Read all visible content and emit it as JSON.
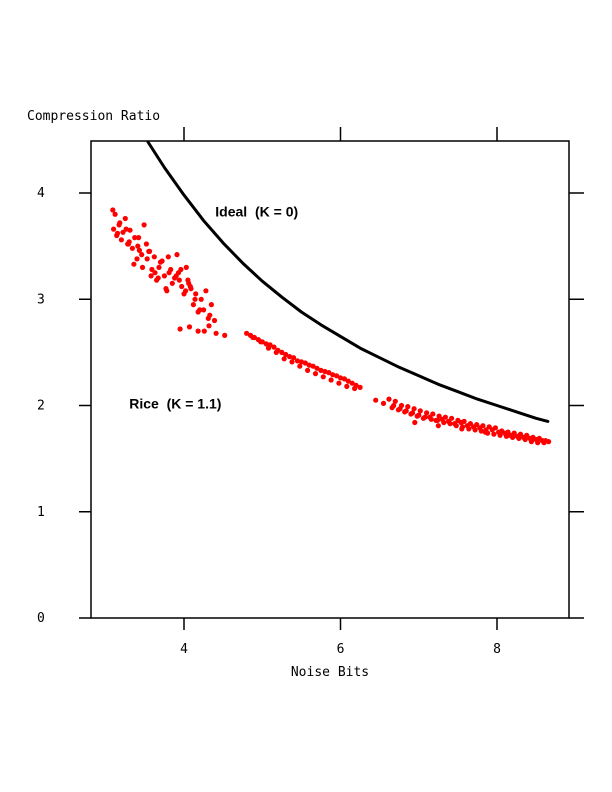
{
  "chart_data": {
    "type": "scatter",
    "title": "",
    "xlabel": "Noise Bits",
    "ylabel": "Compression Ratio",
    "xlim": [
      2.85,
      8.9
    ],
    "ylim": [
      0,
      4.5
    ],
    "x_ticks": [
      4,
      6,
      8
    ],
    "x_tick_labels": [
      "4",
      "6",
      "8"
    ],
    "y_ticks": [
      0,
      1,
      2,
      3,
      4
    ],
    "y_tick_labels": [
      "0",
      "1",
      "2",
      "3",
      "4"
    ],
    "grid": false,
    "legend": "none",
    "series": [
      {
        "name": "Ideal (K = 0)",
        "kind": "line",
        "color": "#000000",
        "x": [
          3.54,
          3.75,
          4.0,
          4.25,
          4.5,
          4.75,
          5.0,
          5.25,
          5.5,
          5.75,
          6.0,
          6.25,
          6.5,
          6.75,
          7.0,
          7.25,
          7.5,
          7.75,
          8.0,
          8.25,
          8.5,
          8.65
        ],
        "values": [
          4.48,
          4.24,
          3.98,
          3.74,
          3.53,
          3.34,
          3.17,
          3.02,
          2.88,
          2.76,
          2.65,
          2.54,
          2.45,
          2.36,
          2.28,
          2.2,
          2.13,
          2.06,
          2.0,
          1.94,
          1.88,
          1.85
        ]
      },
      {
        "name": "Rice (K = 1.1)",
        "kind": "points",
        "color": "#ff0000",
        "x": [
          3.09,
          3.12,
          3.15,
          3.18,
          3.22,
          3.25,
          3.28,
          3.31,
          3.34,
          3.37,
          3.4,
          3.43,
          3.46,
          3.49,
          3.52,
          3.56,
          3.59,
          3.62,
          3.65,
          3.68,
          3.72,
          3.75,
          3.78,
          3.81,
          3.85,
          3.88,
          3.91,
          3.94,
          3.97,
          4.0,
          4.03,
          4.06,
          4.09,
          4.12,
          4.15,
          4.18,
          4.22,
          4.25,
          4.28,
          4.31,
          4.35,
          4.39,
          3.1,
          3.14,
          3.2,
          3.26,
          3.3,
          3.36,
          3.42,
          3.47,
          3.53,
          3.58,
          3.63,
          3.7,
          3.77,
          3.83,
          3.9,
          3.96,
          4.02,
          4.08,
          4.14,
          4.2,
          4.26,
          4.33,
          3.17,
          3.29,
          3.41,
          3.55,
          3.67,
          3.8,
          3.93,
          4.05,
          3.95,
          4.07,
          4.18,
          4.32,
          4.41,
          4.52,
          4.8,
          4.85,
          4.9,
          4.95,
          5.0,
          5.05,
          5.1,
          5.15,
          5.2,
          5.25,
          5.3,
          5.35,
          5.4,
          5.45,
          5.5,
          5.55,
          5.6,
          5.65,
          5.7,
          5.75,
          5.8,
          5.85,
          5.9,
          5.95,
          6.0,
          6.05,
          6.1,
          6.15,
          6.2,
          6.25,
          4.88,
          4.98,
          5.08,
          5.18,
          5.28,
          5.38,
          5.48,
          5.58,
          5.68,
          5.78,
          5.88,
          5.98,
          6.08,
          6.18,
          6.45,
          6.55,
          6.62,
          6.66,
          6.7,
          6.74,
          6.78,
          6.82,
          6.86,
          6.9,
          6.94,
          6.98,
          7.02,
          7.06,
          7.1,
          7.14,
          7.18,
          7.22,
          7.26,
          7.3,
          7.34,
          7.38,
          7.42,
          7.46,
          7.5,
          7.54,
          7.58,
          7.62,
          7.66,
          7.7,
          7.74,
          7.78,
          7.82,
          7.86,
          7.9,
          7.94,
          7.98,
          8.02,
          8.06,
          8.1,
          8.14,
          8.18,
          8.22,
          8.26,
          8.3,
          8.34,
          8.38,
          8.42,
          8.46,
          8.5,
          8.54,
          8.58,
          8.62,
          8.66,
          6.68,
          6.76,
          6.84,
          6.92,
          7.0,
          7.08,
          7.16,
          7.24,
          7.32,
          7.4,
          7.48,
          7.56,
          7.64,
          7.72,
          7.8,
          7.88,
          7.96,
          8.04,
          8.12,
          8.2,
          8.28,
          8.36,
          8.44,
          8.52,
          8.6,
          6.95,
          7.25,
          7.55,
          7.85,
          8.15,
          8.45
        ],
        "values": [
          3.84,
          3.8,
          3.62,
          3.72,
          3.63,
          3.76,
          3.52,
          3.65,
          3.48,
          3.58,
          3.38,
          3.46,
          3.42,
          3.7,
          3.52,
          3.45,
          3.28,
          3.4,
          3.18,
          3.3,
          3.36,
          3.22,
          3.08,
          3.25,
          3.15,
          3.2,
          3.42,
          3.18,
          3.12,
          3.05,
          3.3,
          3.15,
          3.1,
          2.95,
          3.05,
          2.88,
          3.0,
          2.9,
          3.08,
          2.82,
          2.95,
          2.8,
          3.66,
          3.6,
          3.56,
          3.66,
          3.54,
          3.33,
          3.58,
          3.3,
          3.38,
          3.22,
          3.25,
          3.35,
          3.1,
          3.28,
          3.22,
          3.28,
          3.08,
          3.12,
          3.0,
          2.9,
          2.7,
          2.85,
          3.7,
          3.52,
          3.5,
          3.45,
          3.2,
          3.4,
          3.25,
          3.18,
          2.72,
          2.74,
          2.7,
          2.75,
          2.68,
          2.66,
          2.68,
          2.66,
          2.64,
          2.62,
          2.6,
          2.58,
          2.57,
          2.55,
          2.52,
          2.5,
          2.48,
          2.46,
          2.45,
          2.42,
          2.41,
          2.4,
          2.38,
          2.37,
          2.35,
          2.33,
          2.32,
          2.31,
          2.29,
          2.28,
          2.26,
          2.25,
          2.23,
          2.21,
          2.19,
          2.17,
          2.64,
          2.6,
          2.54,
          2.5,
          2.44,
          2.41,
          2.37,
          2.33,
          2.3,
          2.27,
          2.24,
          2.21,
          2.18,
          2.16,
          2.05,
          2.02,
          2.06,
          1.98,
          2.04,
          1.96,
          2.0,
          1.94,
          1.99,
          1.92,
          1.97,
          1.9,
          1.95,
          1.88,
          1.93,
          1.89,
          1.92,
          1.86,
          1.9,
          1.87,
          1.89,
          1.85,
          1.88,
          1.83,
          1.86,
          1.84,
          1.85,
          1.81,
          1.83,
          1.8,
          1.82,
          1.79,
          1.81,
          1.77,
          1.8,
          1.77,
          1.79,
          1.75,
          1.76,
          1.74,
          1.75,
          1.72,
          1.74,
          1.71,
          1.73,
          1.7,
          1.72,
          1.69,
          1.7,
          1.68,
          1.69,
          1.67,
          1.67,
          1.66,
          2.0,
          1.97,
          1.95,
          1.93,
          1.91,
          1.89,
          1.87,
          1.86,
          1.84,
          1.83,
          1.81,
          1.8,
          1.78,
          1.77,
          1.76,
          1.74,
          1.73,
          1.72,
          1.71,
          1.7,
          1.69,
          1.68,
          1.66,
          1.65,
          1.65,
          1.84,
          1.81,
          1.78,
          1.75,
          1.72,
          1.68
        ]
      }
    ],
    "annotations": [
      {
        "text": "Ideal  (K = 0)",
        "x": 4.4,
        "y": 3.78,
        "series": "Ideal (K = 0)"
      },
      {
        "text": "Rice  (K = 1.1)",
        "x": 3.3,
        "y": 1.97,
        "series": "Rice (K = 1.1)"
      }
    ]
  }
}
